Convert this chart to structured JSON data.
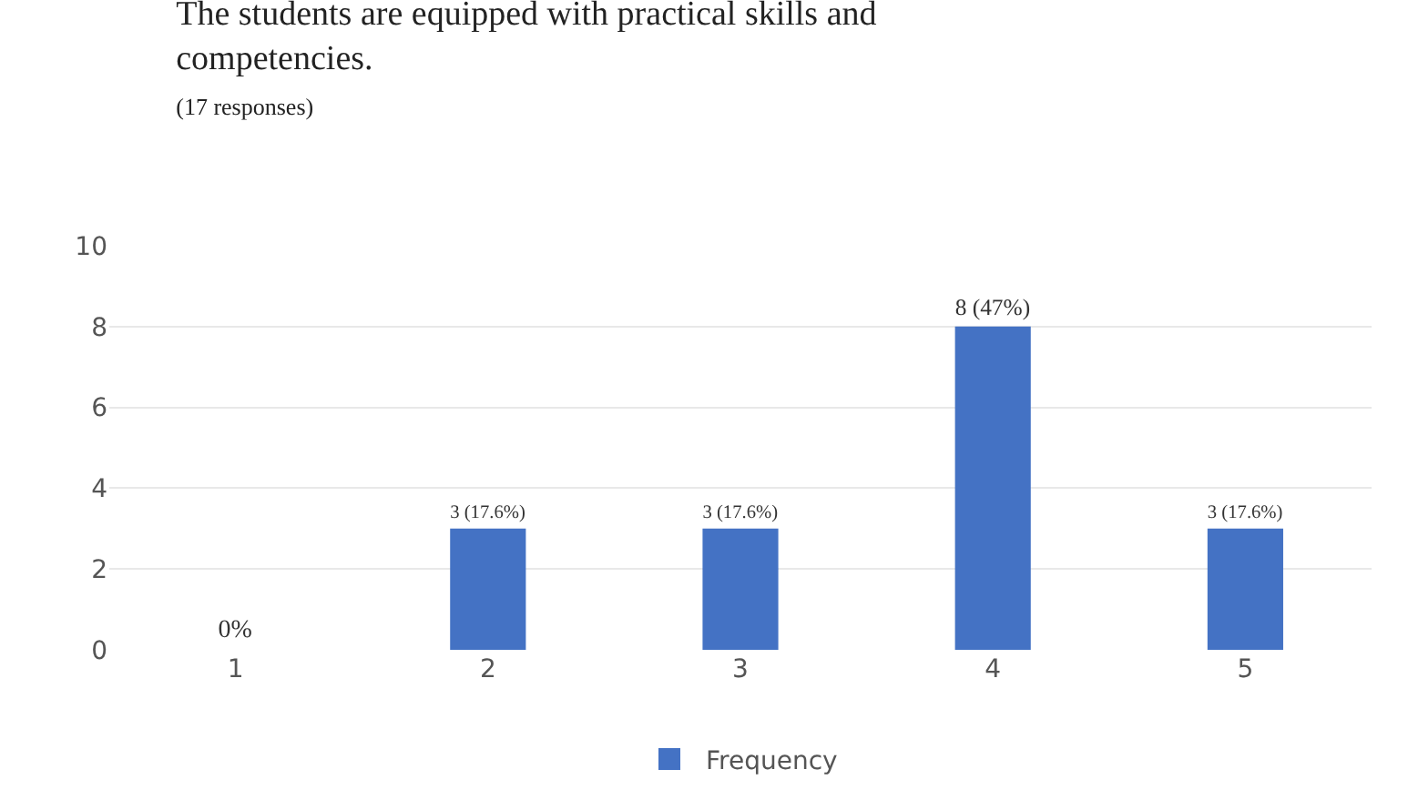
{
  "chart_data": {
    "type": "bar",
    "title": "The students are equipped with practical skills and competencies.",
    "subtitle": "(17 responses)",
    "categories": [
      "1",
      "2",
      "3",
      "4",
      "5"
    ],
    "series": [
      {
        "name": "Frequency",
        "color": "#4472c4",
        "values": [
          0,
          3,
          3,
          8,
          3
        ],
        "value_labels": [
          "0%",
          "3 (17.6%)",
          "3 (17.6%)",
          "8 (47%)",
          "3 (17.6%)"
        ]
      }
    ],
    "ylim": [
      0,
      10
    ],
    "yticks": [
      0,
      2,
      4,
      6,
      8,
      10
    ],
    "grid": "y",
    "legend": "bottom"
  }
}
